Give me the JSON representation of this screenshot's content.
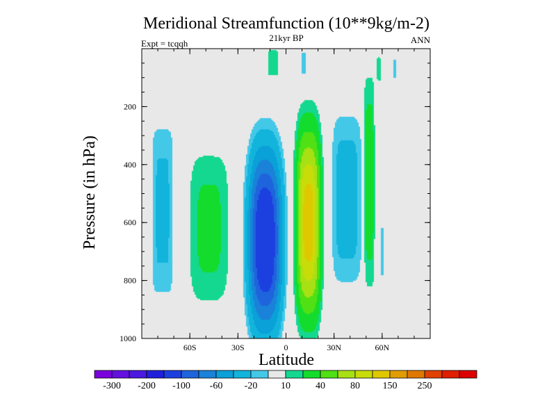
{
  "chart_data": {
    "type": "contour",
    "title": "Meridional Streamfunction (10**9kg/m-2)",
    "subtitle": "21kyr BP",
    "left_label": "Expt = tcqqh",
    "right_label": "ANN",
    "xlabel": "Latitude",
    "ylabel": "Pressure (in hPa)",
    "xlim": [
      -90,
      90
    ],
    "ylim": [
      0,
      1000
    ],
    "y_inverted": true,
    "x_ticks": [
      {
        "value": -60,
        "label": "60S"
      },
      {
        "value": -30,
        "label": "30S"
      },
      {
        "value": 0,
        "label": "0"
      },
      {
        "value": 30,
        "label": "30N"
      },
      {
        "value": 60,
        "label": "60N"
      }
    ],
    "y_ticks": [
      {
        "value": 200,
        "label": "200"
      },
      {
        "value": 400,
        "label": "400"
      },
      {
        "value": 600,
        "label": "600"
      },
      {
        "value": 800,
        "label": "800"
      },
      {
        "value": 1000,
        "label": "1000"
      }
    ],
    "background_color": "#e8e8e8",
    "levels": [
      -300,
      -250,
      -200,
      -150,
      -100,
      -80,
      -60,
      -40,
      -20,
      -10,
      10,
      20,
      40,
      60,
      80,
      100,
      150,
      200,
      250,
      300
    ],
    "colors": [
      "#7a00dc",
      "#6410e0",
      "#4b19e0",
      "#2020dc",
      "#1c40e0",
      "#1e64dc",
      "#1a82d8",
      "#0aa0d8",
      "#12b4dc",
      "#44c8e8",
      "#e8e8e8",
      "#14d890",
      "#14dc2c",
      "#50e014",
      "#a8e014",
      "#c8dc0a",
      "#e0c800",
      "#e09c00",
      "#e07800",
      "#e04000",
      "#e01e00",
      "#dc0000"
    ],
    "colorbar_labels": [
      {
        "after_level_index": 0,
        "label": "-300"
      },
      {
        "after_level_index": 2,
        "label": "-200"
      },
      {
        "after_level_index": 4,
        "label": "-100"
      },
      {
        "after_level_index": 6,
        "label": "-60"
      },
      {
        "after_level_index": 8,
        "label": "-20"
      },
      {
        "after_level_index": 10,
        "label": "10"
      },
      {
        "after_level_index": 12,
        "label": "40"
      },
      {
        "after_level_index": 14,
        "label": "80"
      },
      {
        "after_level_index": 16,
        "label": "150"
      },
      {
        "after_level_index": 18,
        "label": "250"
      }
    ],
    "cells": [
      {
        "name": "sh-polar-cell",
        "center": [
          -77,
          560
        ],
        "half_width": [
          10,
          460
        ],
        "sharp": 8,
        "peak": -30
      },
      {
        "name": "sh-ferrel-cell",
        "center": [
          -48,
          620
        ],
        "half_width": [
          20,
          420
        ],
        "sharp": 4,
        "peak": 28
      },
      {
        "name": "sh-hadley-cell",
        "center": [
          -13,
          660
        ],
        "half_width": [
          17,
          510
        ],
        "sharp": 2.6,
        "peak": -138
      },
      {
        "name": "nh-hadley-cell",
        "center": [
          14,
          600
        ],
        "half_width": [
          12,
          520
        ],
        "sharp": 3,
        "peak": 118
      },
      {
        "name": "nh-ferrel-cell",
        "center": [
          38,
          520
        ],
        "half_width": [
          14,
          440
        ],
        "sharp": 5,
        "peak": -36
      },
      {
        "name": "nh-narrow-positive-cell",
        "center": [
          52,
          460
        ],
        "half_width": [
          5,
          540
        ],
        "sharp": 5,
        "peak": 40
      },
      {
        "name": "nh-polar-negative-cell",
        "center": [
          60,
          700
        ],
        "half_width": [
          4,
          300
        ],
        "sharp": 6,
        "peak": -12
      },
      {
        "name": "nh-upper-positive-cell",
        "center": [
          58,
          70
        ],
        "half_width": [
          3,
          100
        ],
        "sharp": 6,
        "peak": 15
      },
      {
        "name": "nh-upper-negative-cell",
        "center": [
          68,
          70
        ],
        "half_width": [
          3,
          90
        ],
        "sharp": 6,
        "peak": -14
      },
      {
        "name": "stratospheric-cell-a",
        "center": [
          -8,
          50
        ],
        "half_width": [
          8,
          120
        ],
        "sharp": 8,
        "peak": 14
      },
      {
        "name": "stratospheric-cell-b",
        "center": [
          11,
          50
        ],
        "half_width": [
          4,
          110
        ],
        "sharp": 8,
        "peak": -13
      }
    ]
  }
}
